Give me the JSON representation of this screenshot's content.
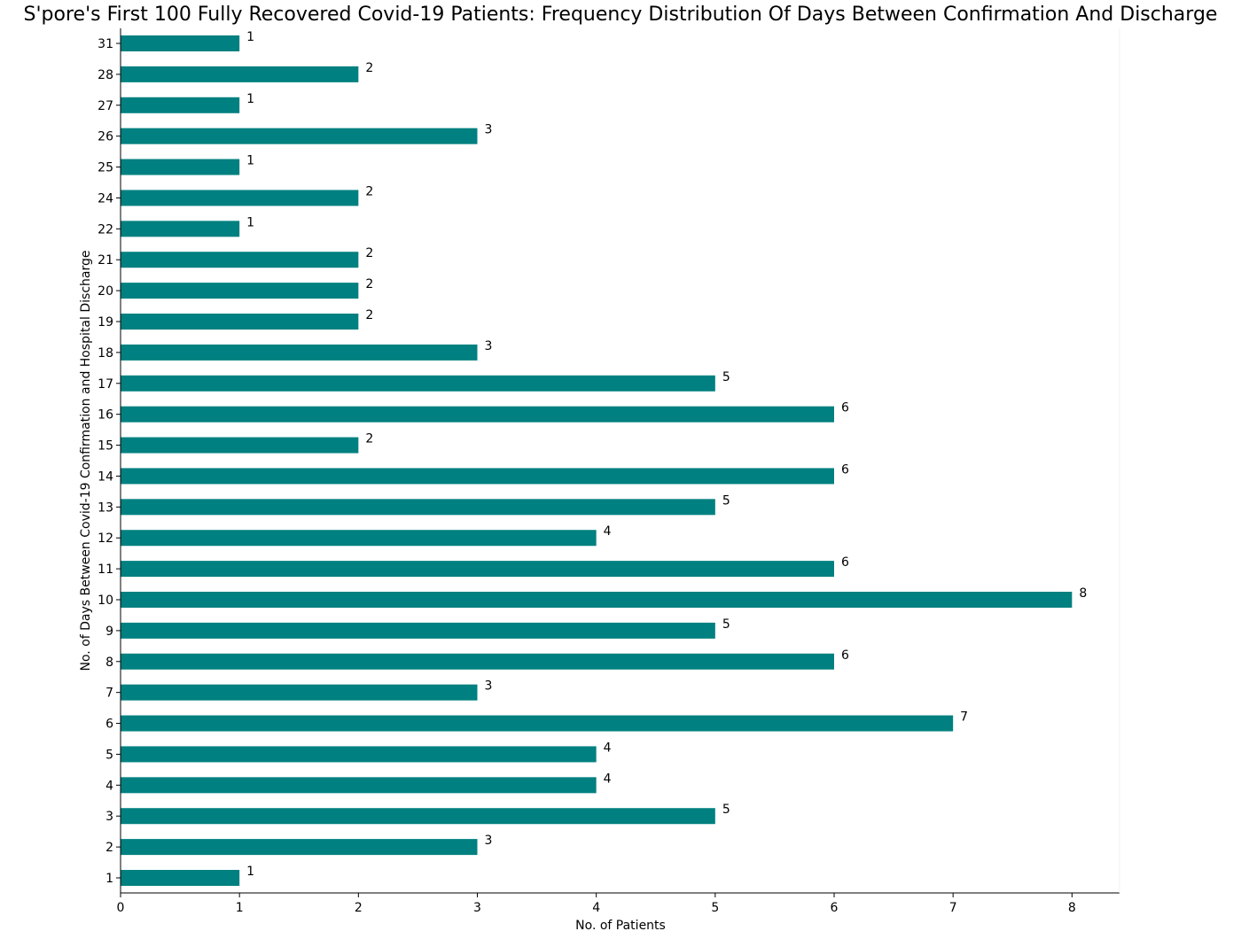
{
  "chart_data": {
    "type": "bar",
    "orientation": "horizontal",
    "title": "S'pore's First 100 Fully Recovered Covid-19 Patients: Frequency Distribution Of Days Between Confirmation And Discharge",
    "xlabel": "No. of Patients",
    "ylabel": "No. of Days Between Covid-19 Confirmation and Hospital Discharge",
    "categories": [
      "1",
      "2",
      "3",
      "4",
      "5",
      "6",
      "7",
      "8",
      "9",
      "10",
      "11",
      "12",
      "13",
      "14",
      "15",
      "16",
      "17",
      "18",
      "19",
      "20",
      "21",
      "22",
      "24",
      "25",
      "26",
      "27",
      "28",
      "31"
    ],
    "values": [
      1,
      3,
      5,
      4,
      4,
      7,
      3,
      6,
      5,
      8,
      6,
      4,
      5,
      6,
      2,
      6,
      5,
      3,
      2,
      2,
      2,
      1,
      2,
      1,
      3,
      1,
      2,
      1
    ],
    "xlim": [
      0,
      8.4
    ],
    "xticks": [
      0,
      1,
      2,
      3,
      4,
      5,
      6,
      7,
      8
    ],
    "bar_color": "#008080",
    "grid": false,
    "data_labels": true
  }
}
